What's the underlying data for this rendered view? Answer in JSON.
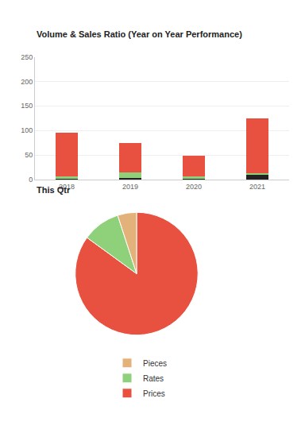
{
  "chart_data": [
    {
      "type": "bar",
      "title": "Volume & Sales Ratio (Year on Year Performance)",
      "categories": [
        "2018",
        "2019",
        "2020",
        "2021"
      ],
      "stacked": true,
      "series": [
        {
          "color": "#222222",
          "values": [
            3,
            3,
            1,
            9
          ]
        },
        {
          "color": "#8fd17a",
          "values": [
            3,
            12,
            5,
            4
          ]
        },
        {
          "color": "#e8503f",
          "values": [
            90,
            60,
            42,
            112
          ]
        }
      ],
      "ylim": [
        0,
        250
      ],
      "yticks": [
        0,
        50,
        100,
        150,
        200,
        250
      ],
      "grid": true
    },
    {
      "type": "pie",
      "title": "This Qtr",
      "categories": [
        "Prices",
        "Rates",
        "Pieces"
      ],
      "values": [
        85,
        10,
        5
      ],
      "colors": [
        "#e8503f",
        "#8fd17a",
        "#e3b27a"
      ],
      "legend": "bottom"
    }
  ]
}
